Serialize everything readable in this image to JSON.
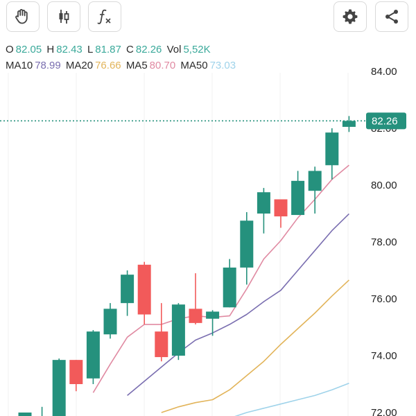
{
  "toolbar": {
    "buttons": [
      {
        "id": "hand",
        "icon": "hand-icon"
      },
      {
        "id": "candle",
        "icon": "candlestick-icon"
      },
      {
        "id": "fx",
        "icon": "function-icon"
      },
      {
        "id": "gear",
        "icon": "gear-icon"
      },
      {
        "id": "share",
        "icon": "share-icon"
      }
    ]
  },
  "legend": {
    "o_label": "O",
    "o_value": "82.05",
    "h_label": "H",
    "h_value": "82.43",
    "l_label": "L",
    "l_value": "81.87",
    "c_label": "C",
    "c_value": "82.26",
    "vol_label": "Vol",
    "vol_value": "5,52K",
    "ma10_label": "MA10",
    "ma10_value": "78.99",
    "ma20_label": "MA20",
    "ma20_value": "76.66",
    "ma5_label": "MA5",
    "ma5_value": "80.70",
    "ma50_label": "MA50",
    "ma50_value": "73.03"
  },
  "colors": {
    "up": "#25917d",
    "down": "#f25a5a",
    "ma5": "#e08aa2",
    "ma10": "#7a6eb0",
    "ma20": "#e2b45a",
    "ma50": "#9fd3ea",
    "last_price": "#25917d",
    "text_teal": "#3aa99a"
  },
  "chart_data": {
    "type": "candlestick",
    "y_ticks": [
      "84.00",
      "82.00",
      "80.00",
      "78.00",
      "76.00",
      "74.00",
      "72.00"
    ],
    "ylim": [
      71.8,
      84.6
    ],
    "last_price": 82.26,
    "last_price_label": "82.26",
    "candles": [
      {
        "o": 71.3,
        "h": 72.0,
        "l": 71.3,
        "c": 72.0
      },
      {
        "o": 71.6,
        "h": 72.2,
        "l": 71.4,
        "c": 71.7
      },
      {
        "o": 71.8,
        "h": 73.9,
        "l": 71.6,
        "c": 73.85
      },
      {
        "o": 73.85,
        "h": 73.85,
        "l": 72.75,
        "c": 73.0
      },
      {
        "o": 73.2,
        "h": 74.9,
        "l": 73.0,
        "c": 74.85
      },
      {
        "o": 74.75,
        "h": 75.85,
        "l": 74.6,
        "c": 75.65
      },
      {
        "o": 75.85,
        "h": 77.0,
        "l": 75.4,
        "c": 76.85
      },
      {
        "o": 77.2,
        "h": 77.3,
        "l": 75.1,
        "c": 75.45
      },
      {
        "o": 74.85,
        "h": 75.85,
        "l": 73.8,
        "c": 73.95
      },
      {
        "o": 74.0,
        "h": 75.85,
        "l": 73.85,
        "c": 75.8
      },
      {
        "o": 75.65,
        "h": 76.9,
        "l": 75.1,
        "c": 75.15
      },
      {
        "o": 75.3,
        "h": 75.6,
        "l": 74.7,
        "c": 75.55
      },
      {
        "o": 75.7,
        "h": 77.4,
        "l": 75.7,
        "c": 77.1
      },
      {
        "o": 77.1,
        "h": 79.05,
        "l": 76.5,
        "c": 78.75
      },
      {
        "o": 79.0,
        "h": 79.9,
        "l": 78.3,
        "c": 79.75
      },
      {
        "o": 79.5,
        "h": 79.5,
        "l": 78.5,
        "c": 78.9
      },
      {
        "o": 78.95,
        "h": 80.5,
        "l": 78.95,
        "c": 80.15
      },
      {
        "o": 79.8,
        "h": 80.65,
        "l": 79.0,
        "c": 80.5
      },
      {
        "o": 80.7,
        "h": 82.0,
        "l": 80.2,
        "c": 81.85
      },
      {
        "o": 82.05,
        "h": 82.43,
        "l": 81.87,
        "c": 82.26
      }
    ],
    "ma5": [
      null,
      null,
      null,
      null,
      72.7,
      73.7,
      74.65,
      75.1,
      75.1,
      75.3,
      75.4,
      75.35,
      75.4,
      76.35,
      77.4,
      78.05,
      78.85,
      79.5,
      80.2,
      80.7
    ],
    "ma10": [
      null,
      null,
      null,
      null,
      null,
      null,
      72.6,
      73.1,
      73.6,
      74.1,
      74.55,
      74.8,
      75.1,
      75.45,
      75.9,
      76.3,
      77.0,
      77.7,
      78.4,
      78.99
    ],
    "ma20": [
      null,
      null,
      null,
      null,
      null,
      null,
      null,
      null,
      72.0,
      72.2,
      72.35,
      72.45,
      72.8,
      73.3,
      73.8,
      74.4,
      74.95,
      75.5,
      76.1,
      76.66
    ],
    "ma50": [
      null,
      null,
      null,
      null,
      null,
      null,
      null,
      null,
      null,
      null,
      null,
      null,
      71.8,
      72.0,
      72.15,
      72.3,
      72.45,
      72.6,
      72.8,
      73.03
    ]
  }
}
